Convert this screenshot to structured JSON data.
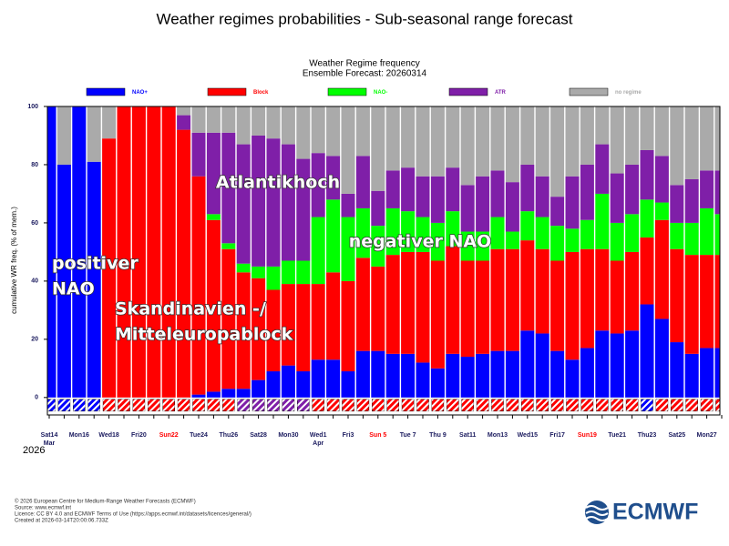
{
  "chart_data": {
    "type": "stacked_bar",
    "title": "Weather regimes probabilities - Sub-seasonal range forecast",
    "subtitle": "Weather Regime frequency",
    "subtitle2": "Ensemble Forecast: 20260314",
    "ylabel": "cumulative WR freq. (% of mem.)",
    "categories": [
      "Sat14",
      null,
      "Mon16",
      null,
      "Wed18",
      null,
      "Fri20",
      null,
      "Sun22",
      null,
      "Tue24",
      null,
      "Thu26",
      null,
      "Sat28",
      null,
      "Mon30",
      null,
      "Wed1",
      null,
      "Fri3",
      null,
      "Sun 5",
      null,
      "Tue 7",
      null,
      "Thu 9",
      null,
      "Sat11",
      null,
      "Mon13",
      null,
      "Wed15",
      null,
      "Fri17",
      null,
      "Sun19",
      null,
      "Tue21",
      null,
      "Thu23",
      null,
      "Sat25",
      null,
      "Mon27",
      null
    ],
    "month_labels": [
      "Mar",
      null,
      null,
      null,
      null,
      null,
      null,
      null,
      null,
      null,
      null,
      null,
      null,
      null,
      null,
      null,
      null,
      null,
      "Apr",
      null,
      null,
      null,
      null,
      null,
      null,
      null,
      null,
      null,
      null,
      null,
      null,
      null,
      null,
      null,
      null,
      null,
      null,
      null,
      null,
      null,
      null,
      null,
      null,
      null,
      null,
      null
    ],
    "year_label": "2026",
    "ylim": [
      -6,
      100
    ],
    "yticks": [
      0,
      20,
      40,
      60,
      80,
      100
    ],
    "sunday_color": "#ff0000",
    "series": [
      {
        "name": "NAO+",
        "color": "#0000ff",
        "values": [
          100,
          80,
          100,
          81,
          0,
          0,
          0,
          0,
          0,
          0,
          1,
          2,
          3,
          3,
          6,
          9,
          11,
          9,
          13,
          13,
          9,
          16,
          16,
          15,
          15,
          12,
          10,
          15,
          14,
          15,
          16,
          16,
          23,
          22,
          16,
          13,
          17,
          23,
          22,
          23,
          32,
          27,
          19,
          15,
          17,
          17
        ]
      },
      {
        "name": "Block",
        "color": "#ff0000",
        "values": [
          0,
          0,
          0,
          0,
          89,
          100,
          100,
          100,
          100,
          92,
          75,
          59,
          48,
          40,
          35,
          28,
          28,
          30,
          26,
          30,
          31,
          32,
          29,
          34,
          35,
          38,
          37,
          37,
          33,
          32,
          35,
          35,
          31,
          29,
          31,
          37,
          34,
          28,
          25,
          27,
          23,
          34,
          32,
          34,
          32,
          32
        ]
      },
      {
        "name": "NAO-",
        "color": "#00ff00",
        "values": [
          0,
          0,
          0,
          0,
          0,
          0,
          0,
          0,
          0,
          0,
          0,
          2,
          2,
          3,
          4,
          8,
          8,
          8,
          23,
          25,
          22,
          17,
          14,
          16,
          14,
          12,
          13,
          12,
          10,
          10,
          11,
          6,
          10,
          11,
          12,
          8,
          10,
          19,
          13,
          13,
          13,
          6,
          9,
          11,
          16,
          14
        ]
      },
      {
        "name": "ATR",
        "color": "#7f1fa8",
        "values": [
          0,
          0,
          0,
          0,
          0,
          0,
          0,
          0,
          0,
          5,
          15,
          28,
          38,
          41,
          45,
          44,
          40,
          35,
          22,
          15,
          8,
          18,
          12,
          13,
          15,
          14,
          16,
          15,
          16,
          19,
          16,
          17,
          16,
          14,
          10,
          18,
          19,
          17,
          17,
          17,
          17,
          16,
          13,
          15,
          13,
          15
        ]
      },
      {
        "name": "no regime",
        "color": "#aaaaaa",
        "values": [
          0,
          20,
          0,
          19,
          11,
          0,
          0,
          0,
          0,
          3,
          9,
          9,
          9,
          13,
          10,
          11,
          13,
          18,
          16,
          17,
          30,
          17,
          29,
          22,
          21,
          24,
          24,
          21,
          27,
          24,
          22,
          26,
          20,
          24,
          31,
          24,
          20,
          13,
          23,
          20,
          15,
          17,
          27,
          25,
          22,
          22
        ]
      }
    ],
    "annotations": [
      {
        "lines": [
          "Atlantikhoch"
        ]
      },
      {
        "lines": [
          "negativer NAO"
        ]
      },
      {
        "lines": [
          "positiver",
          "NAO"
        ]
      },
      {
        "lines": [
          "Skandinavien -/",
          "Mitteleuropablock"
        ]
      }
    ],
    "footer": [
      "© 2026 European Centre for Medium-Range Weather Forecasts (ECMWF)",
      "Source: www.ecmwf.int",
      "Licence: CC BY 4.0 and ECMWF Terms of Use (https://apps.ecmwf.int/datasets/licences/general/)",
      "Created at 2026-03-14T20:00:06.733Z"
    ],
    "logo": "ECMWF"
  }
}
